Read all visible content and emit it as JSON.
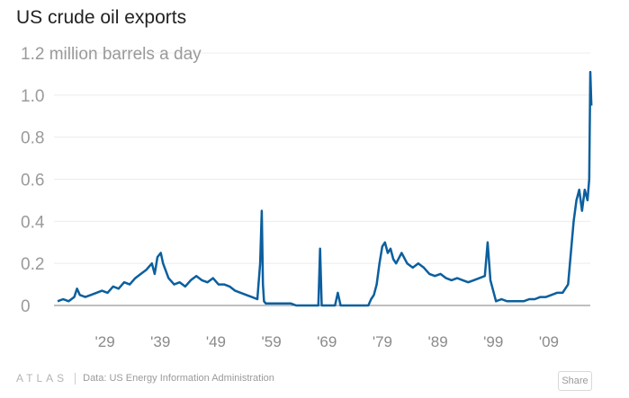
{
  "chart_data": {
    "type": "line",
    "title": "US crude oil exports",
    "ylabel": "million barrels a day",
    "ylim": [
      0,
      1.2
    ],
    "y_ticks": [
      0,
      0.2,
      0.4,
      0.6,
      0.8,
      1.0,
      1.2
    ],
    "y_tick_labels": [
      "0",
      "0.2",
      "0.4",
      "0.6",
      "0.8",
      "1.0",
      "1.2 million barrels a day"
    ],
    "x_range": [
      1920,
      2016
    ],
    "x_ticks": [
      1929,
      1939,
      1949,
      1959,
      1969,
      1979,
      1989,
      1999,
      2009
    ],
    "x_tick_labels": [
      "'29",
      "'39",
      "'49",
      "'59",
      "'69",
      "'79",
      "'89",
      "'99",
      "'09"
    ],
    "grid": true,
    "color": "#0b5f9e",
    "series": [
      {
        "x": [
          1920.0,
          1921.0,
          1922.0,
          1923.0,
          1923.5,
          1924.0,
          1925.0,
          1926.0,
          1927.0,
          1928.0,
          1929.0,
          1930.0,
          1931.0,
          1932.0,
          1933.0,
          1934.0,
          1935.0,
          1936.0,
          1937.0,
          1937.5,
          1938.0,
          1938.6,
          1939.0,
          1940.0,
          1941.0,
          1942.0,
          1943.0,
          1944.0,
          1945.0,
          1946.0,
          1947.0,
          1948.0,
          1949.0,
          1950.0,
          1951.0,
          1952.0,
          1953.0,
          1954.0,
          1955.0,
          1956.0,
          1956.5,
          1956.8,
          1957.0,
          1957.2,
          1957.5,
          1958.0,
          1959.0,
          1960.0,
          1961.0,
          1962.0,
          1963.0,
          1964.0,
          1965.0,
          1966.0,
          1967.0,
          1967.3,
          1967.6,
          1968.0,
          1969.0,
          1970.0,
          1970.5,
          1971.0,
          1972.0,
          1973.0,
          1974.0,
          1975.0,
          1976.0,
          1976.5,
          1977.0,
          1977.5,
          1978.0,
          1978.5,
          1979.0,
          1979.5,
          1980.0,
          1980.5,
          1981.0,
          1982.0,
          1983.0,
          1984.0,
          1985.0,
          1986.0,
          1987.0,
          1988.0,
          1989.0,
          1990.0,
          1991.0,
          1992.0,
          1993.0,
          1994.0,
          1995.0,
          1996.0,
          1997.0,
          1997.5,
          1998.0,
          1999.0,
          2000.0,
          2001.0,
          2002.0,
          2003.0,
          2004.0,
          2005.0,
          2006.0,
          2007.0,
          2008.0,
          2009.0,
          2010.0,
          2011.0,
          2012.0,
          2012.5,
          2013.0,
          2013.5,
          2014.0,
          2014.5,
          2015.0,
          2015.5,
          2015.8,
          2016.0,
          2016.2
        ],
        "y": [
          0.02,
          0.03,
          0.02,
          0.04,
          0.08,
          0.05,
          0.04,
          0.05,
          0.06,
          0.07,
          0.06,
          0.09,
          0.08,
          0.11,
          0.1,
          0.13,
          0.15,
          0.17,
          0.2,
          0.15,
          0.23,
          0.25,
          0.2,
          0.13,
          0.1,
          0.11,
          0.09,
          0.12,
          0.14,
          0.12,
          0.11,
          0.13,
          0.1,
          0.1,
          0.09,
          0.07,
          0.06,
          0.05,
          0.04,
          0.03,
          0.2,
          0.45,
          0.1,
          0.02,
          0.01,
          0.01,
          0.01,
          0.01,
          0.01,
          0.01,
          0.0,
          0.0,
          0.0,
          0.0,
          0.0,
          0.27,
          0.0,
          0.0,
          0.0,
          0.0,
          0.06,
          0.0,
          0.0,
          0.0,
          0.0,
          0.0,
          0.0,
          0.03,
          0.05,
          0.1,
          0.2,
          0.28,
          0.3,
          0.25,
          0.27,
          0.22,
          0.2,
          0.25,
          0.2,
          0.18,
          0.2,
          0.18,
          0.15,
          0.14,
          0.15,
          0.13,
          0.12,
          0.13,
          0.12,
          0.11,
          0.12,
          0.13,
          0.14,
          0.3,
          0.12,
          0.02,
          0.03,
          0.02,
          0.02,
          0.02,
          0.02,
          0.03,
          0.03,
          0.04,
          0.04,
          0.05,
          0.06,
          0.06,
          0.1,
          0.25,
          0.4,
          0.5,
          0.55,
          0.45,
          0.55,
          0.5,
          0.6,
          1.11,
          0.95
        ]
      }
    ]
  },
  "footer": {
    "logo": "ATLAS",
    "source": "Data: US Energy Information Administration",
    "share_label": "Share"
  }
}
